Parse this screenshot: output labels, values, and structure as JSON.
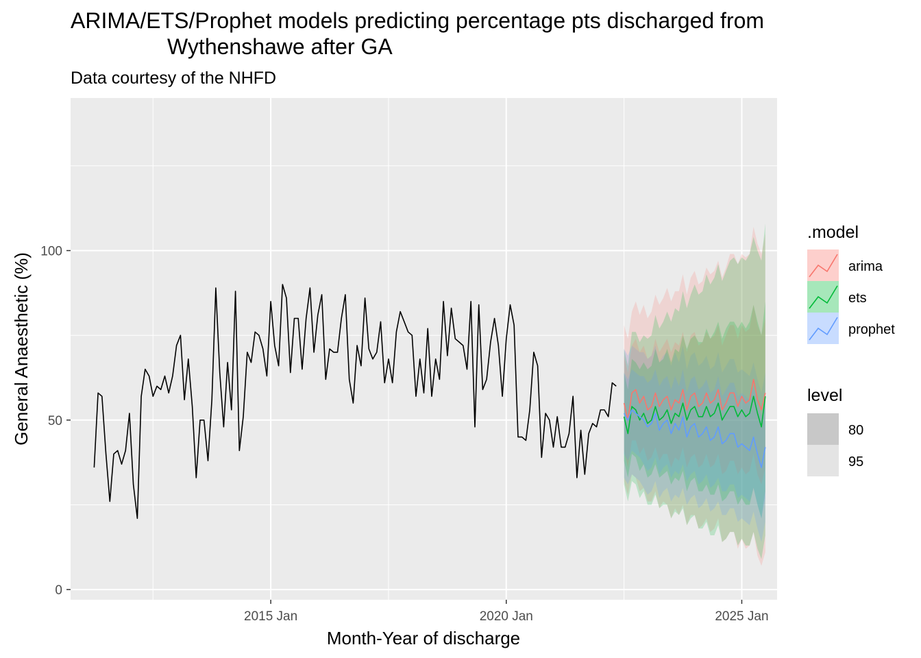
{
  "chart_data": {
    "type": "line",
    "title_line1": "ARIMA/ETS/Prophet models predicting percentage pts discharged from",
    "title_line2": "Wythenshawe after GA",
    "subtitle": "Data courtesy of the NHFD",
    "xlabel": "Month-Year of discharge",
    "ylabel": "General Anaesthetic (%)",
    "x_ticks": [
      "2015 Jan",
      "2020 Jan",
      "2025 Jan"
    ],
    "y_ticks": [
      0,
      50,
      100
    ],
    "xlim": [
      "2010-10",
      "2025-10"
    ],
    "ylim": [
      -3,
      145
    ],
    "grid": true,
    "legend_position": "right",
    "legend_model_title": ".model",
    "legend_level_title": "level",
    "legend_levels": [
      "80",
      "95"
    ],
    "history": {
      "start": "2011-04",
      "values": [
        36,
        58,
        57,
        40,
        26,
        40,
        41,
        37,
        41,
        52,
        31,
        21,
        57,
        65,
        63,
        57,
        60,
        59,
        63,
        58,
        63,
        72,
        75,
        56,
        68,
        54,
        33,
        50,
        50,
        38,
        56,
        89,
        64,
        48,
        67,
        53,
        88,
        41,
        51,
        70,
        67,
        76,
        75,
        71,
        63,
        85,
        72,
        66,
        90,
        86,
        64,
        80,
        80,
        65,
        80,
        89,
        70,
        81,
        87,
        62,
        71,
        70,
        70,
        80,
        87,
        62,
        55,
        72,
        66,
        86,
        71,
        68,
        70,
        79,
        61,
        68,
        61,
        76,
        82,
        79,
        76,
        75,
        57,
        68,
        58,
        77,
        57,
        68,
        62,
        85,
        69,
        83,
        74,
        73,
        72,
        65,
        85,
        48,
        84,
        59,
        62,
        73,
        80,
        72,
        57,
        74,
        84,
        78,
        45,
        45,
        44,
        53,
        70,
        66,
        39,
        52,
        50,
        42,
        51,
        42,
        42,
        46,
        57,
        33,
        47,
        34,
        46,
        49,
        48,
        53,
        53,
        51,
        61,
        60
      ]
    },
    "forecast": {
      "start": "2022-07",
      "series": [
        {
          "name": "arima",
          "color": "#F8766D",
          "fill": "#F8766D",
          "mean": [
            55,
            50,
            58,
            59,
            55,
            57,
            53,
            54,
            58,
            54,
            56,
            57,
            53,
            56,
            55,
            59,
            53,
            57,
            58,
            54,
            55,
            58,
            55,
            56,
            59,
            53,
            55,
            58,
            58,
            54,
            57,
            55,
            56,
            62,
            56,
            53,
            58
          ],
          "lo80": [
            41,
            36,
            44,
            44,
            40,
            42,
            38,
            39,
            42,
            38,
            40,
            40,
            36,
            39,
            38,
            42,
            36,
            39,
            40,
            36,
            37,
            40,
            36,
            37,
            40,
            34,
            35,
            38,
            38,
            34,
            36,
            34,
            35,
            40,
            34,
            31,
            36
          ],
          "hi80": [
            69,
            64,
            72,
            74,
            70,
            72,
            68,
            69,
            74,
            70,
            72,
            74,
            70,
            73,
            72,
            76,
            70,
            75,
            76,
            72,
            73,
            76,
            74,
            75,
            78,
            72,
            75,
            78,
            78,
            74,
            78,
            76,
            77,
            84,
            78,
            75,
            80
          ],
          "lo95": [
            32,
            28,
            34,
            33,
            29,
            30,
            26,
            26,
            29,
            24,
            26,
            25,
            21,
            24,
            22,
            25,
            19,
            22,
            22,
            18,
            19,
            21,
            17,
            18,
            21,
            14,
            15,
            17,
            17,
            12,
            15,
            12,
            13,
            17,
            10,
            7,
            11
          ],
          "hi95": [
            78,
            74,
            82,
            85,
            81,
            84,
            80,
            82,
            87,
            84,
            86,
            89,
            85,
            88,
            88,
            93,
            87,
            92,
            94,
            90,
            91,
            95,
            93,
            94,
            97,
            92,
            95,
            99,
            99,
            96,
            99,
            98,
            99,
            107,
            102,
            99,
            105
          ]
        },
        {
          "name": "ets",
          "color": "#00BA38",
          "fill": "#00BA38",
          "mean": [
            51,
            46,
            54,
            53,
            50,
            52,
            49,
            50,
            54,
            50,
            51,
            53,
            49,
            52,
            51,
            55,
            50,
            53,
            54,
            51,
            51,
            54,
            51,
            52,
            55,
            50,
            52,
            54,
            54,
            51,
            53,
            51,
            52,
            57,
            52,
            48,
            57
          ],
          "lo80": [
            38,
            33,
            40,
            39,
            35,
            37,
            33,
            34,
            37,
            33,
            34,
            35,
            31,
            33,
            32,
            35,
            29,
            32,
            33,
            29,
            29,
            31,
            28,
            28,
            31,
            26,
            27,
            29,
            29,
            25,
            27,
            25,
            25,
            30,
            25,
            21,
            29
          ],
          "hi80": [
            64,
            59,
            68,
            67,
            65,
            67,
            65,
            66,
            71,
            67,
            68,
            71,
            67,
            71,
            70,
            75,
            71,
            74,
            75,
            73,
            73,
            77,
            74,
            76,
            79,
            74,
            77,
            79,
            79,
            77,
            79,
            77,
            79,
            84,
            79,
            75,
            85
          ],
          "lo95": [
            31,
            26,
            32,
            31,
            27,
            29,
            25,
            25,
            28,
            24,
            25,
            25,
            21,
            23,
            22,
            24,
            19,
            21,
            22,
            18,
            18,
            20,
            16,
            16,
            19,
            14,
            15,
            17,
            17,
            13,
            15,
            13,
            13,
            17,
            12,
            9,
            16
          ],
          "hi95": [
            71,
            66,
            76,
            76,
            73,
            75,
            74,
            75,
            81,
            77,
            79,
            82,
            79,
            83,
            82,
            88,
            83,
            87,
            90,
            87,
            88,
            93,
            90,
            92,
            96,
            91,
            94,
            97,
            98,
            96,
            98,
            97,
            99,
            104,
            100,
            97,
            108
          ]
        },
        {
          "name": "prophet",
          "color": "#619CFF",
          "fill": "#619CFF",
          "mean": [
            52,
            50,
            53,
            52,
            51,
            50,
            48,
            49,
            52,
            47,
            49,
            50,
            46,
            49,
            47,
            51,
            45,
            48,
            49,
            45,
            46,
            48,
            44,
            45,
            48,
            43,
            44,
            46,
            46,
            42,
            43,
            42,
            41,
            45,
            40,
            36,
            42
          ],
          "lo80": [
            40,
            38,
            41,
            40,
            39,
            37,
            35,
            36,
            39,
            34,
            36,
            37,
            33,
            35,
            34,
            37,
            32,
            34,
            35,
            31,
            32,
            34,
            30,
            31,
            33,
            29,
            29,
            31,
            31,
            27,
            28,
            27,
            26,
            30,
            25,
            21,
            27
          ],
          "hi80": [
            64,
            62,
            65,
            64,
            63,
            63,
            61,
            62,
            65,
            60,
            62,
            63,
            59,
            63,
            60,
            65,
            58,
            62,
            63,
            59,
            60,
            62,
            58,
            59,
            63,
            57,
            59,
            61,
            61,
            57,
            58,
            57,
            56,
            60,
            55,
            51,
            57
          ],
          "lo95": [
            33,
            31,
            34,
            33,
            32,
            30,
            28,
            29,
            32,
            27,
            29,
            30,
            26,
            28,
            27,
            30,
            25,
            27,
            28,
            24,
            25,
            27,
            23,
            24,
            26,
            22,
            22,
            24,
            24,
            20,
            21,
            20,
            19,
            23,
            18,
            14,
            20
          ],
          "hi95": [
            71,
            69,
            72,
            71,
            70,
            70,
            68,
            69,
            72,
            67,
            69,
            70,
            66,
            70,
            67,
            72,
            65,
            69,
            70,
            66,
            67,
            69,
            65,
            66,
            70,
            64,
            66,
            68,
            68,
            64,
            65,
            64,
            63,
            67,
            62,
            58,
            64
          ]
        }
      ]
    }
  }
}
